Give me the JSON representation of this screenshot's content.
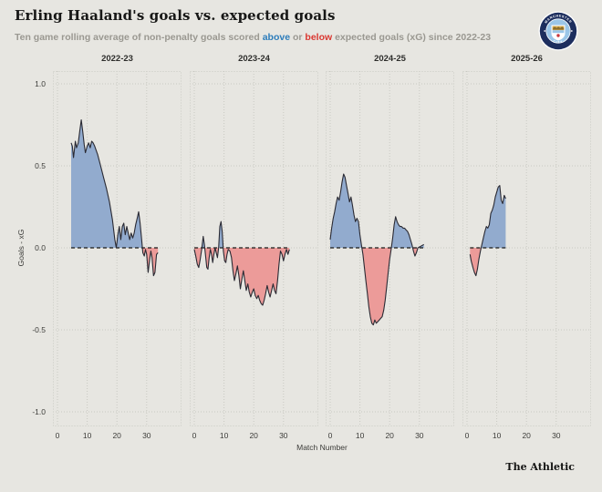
{
  "header": {
    "title": "Erling Haaland's goals vs. expected goals",
    "subtitle_prefix": "Ten game rolling average of non-penalty goals scored ",
    "above_word": "above",
    "or_word": " or ",
    "below_word": "below",
    "subtitle_suffix": " expected goals (xG) since 2022-23",
    "badge_icon": "manchester-city-crest"
  },
  "footer": {
    "brand": "The Athletic"
  },
  "colors": {
    "background": "#e7e6e1",
    "above_fill": "#92abce",
    "below_fill": "#ec9b99",
    "line": "#2a2a33",
    "zero_line": "#1a1a1a",
    "grid": "#c9c9c2",
    "tick_text": "#3c3c39",
    "above_text": "#2d7dbb",
    "below_text": "#da3832",
    "subtitle_text": "#9a9891",
    "crest_navy": "#1d2e5e",
    "crest_sky": "#9bc6e8",
    "crest_gold": "#d4a94a",
    "crest_red": "#c8373e"
  },
  "chart_data": {
    "type": "area",
    "title": "Erling Haaland's goals vs. expected goals",
    "xlabel": "Match Number",
    "ylabel": "Goals - xG",
    "ylim": [
      -1.0,
      1.0
    ],
    "yticks": [
      1.0,
      0.5,
      0.0,
      -0.5,
      -1.0
    ],
    "ytick_labels": [
      "1.0",
      "0.5",
      "0.0",
      "-0.5",
      "-1.0"
    ],
    "xticks": [
      0,
      10,
      20,
      30
    ],
    "xtick_labels": [
      "0",
      "10",
      "20",
      "30"
    ],
    "grid": "dotted",
    "legend": "none",
    "panels": [
      {
        "season": "2022-23",
        "points": [
          [
            4.6,
            0.64
          ],
          [
            5,
            0.62
          ],
          [
            5.4,
            0.55
          ],
          [
            6,
            0.65
          ],
          [
            6.4,
            0.61
          ],
          [
            7,
            0.64
          ],
          [
            7.5,
            0.71
          ],
          [
            8,
            0.78
          ],
          [
            8.5,
            0.71
          ],
          [
            9,
            0.63
          ],
          [
            9.4,
            0.58
          ],
          [
            10,
            0.62
          ],
          [
            10.5,
            0.64
          ],
          [
            11,
            0.61
          ],
          [
            11.5,
            0.65
          ],
          [
            12,
            0.64
          ],
          [
            12.5,
            0.62
          ],
          [
            13.5,
            0.57
          ],
          [
            14.5,
            0.5
          ],
          [
            15.5,
            0.43
          ],
          [
            16.5,
            0.36
          ],
          [
            17.5,
            0.28
          ],
          [
            18.5,
            0.17
          ],
          [
            19.3,
            0.05
          ],
          [
            19.8,
            0.0
          ],
          [
            20.3,
            0.08
          ],
          [
            20.8,
            0.13
          ],
          [
            21.3,
            0.05
          ],
          [
            21.8,
            0.13
          ],
          [
            22.3,
            0.15
          ],
          [
            22.8,
            0.08
          ],
          [
            23.3,
            0.13
          ],
          [
            23.8,
            0.09
          ],
          [
            24.3,
            0.05
          ],
          [
            24.8,
            0.09
          ],
          [
            25.3,
            0.06
          ],
          [
            25.8,
            0.09
          ],
          [
            26.3,
            0.14
          ],
          [
            26.8,
            0.18
          ],
          [
            27.3,
            0.22
          ],
          [
            27.8,
            0.15
          ],
          [
            28.3,
            0.05
          ],
          [
            28.7,
            -0.03
          ],
          [
            29.2,
            -0.05
          ],
          [
            29.6,
            -0.01
          ],
          [
            30,
            -0.04
          ],
          [
            30.5,
            -0.15
          ],
          [
            31,
            -0.07
          ],
          [
            31.4,
            -0.02
          ],
          [
            31.8,
            -0.06
          ],
          [
            32.3,
            -0.17
          ],
          [
            32.8,
            -0.15
          ],
          [
            33.3,
            -0.04
          ],
          [
            33.8,
            -0.03
          ]
        ]
      },
      {
        "season": "2023-24",
        "points": [
          [
            0,
            -0.01
          ],
          [
            0.5,
            -0.05
          ],
          [
            1,
            -0.1
          ],
          [
            1.5,
            -0.12
          ],
          [
            2,
            -0.07
          ],
          [
            2.5,
            -0.01
          ],
          [
            3,
            0.07
          ],
          [
            3.4,
            0.02
          ],
          [
            3.8,
            -0.05
          ],
          [
            4.2,
            -0.12
          ],
          [
            4.6,
            -0.13
          ],
          [
            5,
            -0.06
          ],
          [
            5.4,
            -0.01
          ],
          [
            5.8,
            -0.04
          ],
          [
            6.2,
            -0.09
          ],
          [
            6.6,
            -0.04
          ],
          [
            7,
            0.0
          ],
          [
            7.4,
            -0.03
          ],
          [
            7.8,
            -0.06
          ],
          [
            8.2,
            0.0
          ],
          [
            8.6,
            0.13
          ],
          [
            9,
            0.16
          ],
          [
            9.4,
            0.1
          ],
          [
            9.8,
            -0.02
          ],
          [
            10.2,
            -0.08
          ],
          [
            10.6,
            -0.09
          ],
          [
            11,
            -0.04
          ],
          [
            11.4,
            -0.01
          ],
          [
            12,
            -0.02
          ],
          [
            12.5,
            -0.06
          ],
          [
            13,
            -0.14
          ],
          [
            13.5,
            -0.2
          ],
          [
            14,
            -0.16
          ],
          [
            14.5,
            -0.11
          ],
          [
            15,
            -0.17
          ],
          [
            15.5,
            -0.25
          ],
          [
            16,
            -0.19
          ],
          [
            16.5,
            -0.14
          ],
          [
            17,
            -0.2
          ],
          [
            17.5,
            -0.26
          ],
          [
            18,
            -0.22
          ],
          [
            18.5,
            -0.27
          ],
          [
            19,
            -0.3
          ],
          [
            19.5,
            -0.27
          ],
          [
            20,
            -0.25
          ],
          [
            20.5,
            -0.29
          ],
          [
            21,
            -0.31
          ],
          [
            21.5,
            -0.29
          ],
          [
            22,
            -0.32
          ],
          [
            22.5,
            -0.34
          ],
          [
            23,
            -0.35
          ],
          [
            23.5,
            -0.32
          ],
          [
            24,
            -0.28
          ],
          [
            24.5,
            -0.23
          ],
          [
            25,
            -0.27
          ],
          [
            25.5,
            -0.3
          ],
          [
            26,
            -0.26
          ],
          [
            26.5,
            -0.22
          ],
          [
            27,
            -0.26
          ],
          [
            27.5,
            -0.28
          ],
          [
            28,
            -0.2
          ],
          [
            28.5,
            -0.1
          ],
          [
            29,
            -0.02
          ],
          [
            29.5,
            -0.04
          ],
          [
            30,
            -0.08
          ],
          [
            30.5,
            -0.04
          ],
          [
            31,
            -0.01
          ],
          [
            31.5,
            -0.04
          ],
          [
            32,
            -0.01
          ]
        ]
      },
      {
        "season": "2024-25",
        "points": [
          [
            0,
            0.05
          ],
          [
            0.5,
            0.12
          ],
          [
            1,
            0.18
          ],
          [
            1.5,
            0.22
          ],
          [
            2,
            0.27
          ],
          [
            2.5,
            0.31
          ],
          [
            3,
            0.29
          ],
          [
            3.5,
            0.34
          ],
          [
            4,
            0.4
          ],
          [
            4.5,
            0.45
          ],
          [
            5,
            0.43
          ],
          [
            5.5,
            0.38
          ],
          [
            6,
            0.33
          ],
          [
            6.5,
            0.28
          ],
          [
            7,
            0.31
          ],
          [
            7.5,
            0.26
          ],
          [
            8,
            0.2
          ],
          [
            8.5,
            0.16
          ],
          [
            9,
            0.18
          ],
          [
            9.5,
            0.16
          ],
          [
            10,
            0.08
          ],
          [
            10.5,
            0.02
          ],
          [
            11,
            -0.04
          ],
          [
            11.5,
            -0.12
          ],
          [
            12,
            -0.2
          ],
          [
            12.5,
            -0.28
          ],
          [
            13,
            -0.36
          ],
          [
            13.5,
            -0.42
          ],
          [
            14,
            -0.46
          ],
          [
            14.5,
            -0.47
          ],
          [
            15,
            -0.44
          ],
          [
            15.5,
            -0.46
          ],
          [
            16,
            -0.45
          ],
          [
            16.5,
            -0.44
          ],
          [
            17,
            -0.43
          ],
          [
            17.5,
            -0.42
          ],
          [
            18,
            -0.38
          ],
          [
            18.5,
            -0.32
          ],
          [
            19,
            -0.24
          ],
          [
            19.5,
            -0.15
          ],
          [
            20,
            -0.07
          ],
          [
            20.5,
            -0.01
          ],
          [
            21,
            0.06
          ],
          [
            21.5,
            0.14
          ],
          [
            22,
            0.19
          ],
          [
            22.5,
            0.16
          ],
          [
            23,
            0.14
          ],
          [
            23.5,
            0.13
          ],
          [
            24,
            0.13
          ],
          [
            24.5,
            0.12
          ],
          [
            25,
            0.12
          ],
          [
            25.5,
            0.11
          ],
          [
            26,
            0.1
          ],
          [
            26.5,
            0.08
          ],
          [
            27,
            0.05
          ],
          [
            27.5,
            0.02
          ],
          [
            28,
            -0.02
          ],
          [
            28.5,
            -0.05
          ],
          [
            29,
            -0.03
          ],
          [
            29.5,
            0.0
          ],
          [
            30.5,
            0.01
          ],
          [
            31.5,
            0.02
          ]
        ]
      },
      {
        "season": "2025-26",
        "points": [
          [
            1,
            -0.04
          ],
          [
            1.4,
            -0.08
          ],
          [
            2,
            -0.12
          ],
          [
            2.5,
            -0.15
          ],
          [
            3,
            -0.17
          ],
          [
            3.5,
            -0.13
          ],
          [
            4,
            -0.07
          ],
          [
            4.5,
            -0.02
          ],
          [
            5,
            0.02
          ],
          [
            5.5,
            0.06
          ],
          [
            6,
            0.1
          ],
          [
            6.5,
            0.13
          ],
          [
            7,
            0.12
          ],
          [
            7.5,
            0.14
          ],
          [
            8,
            0.21
          ],
          [
            8.5,
            0.23
          ],
          [
            9,
            0.26
          ],
          [
            9.5,
            0.31
          ],
          [
            10,
            0.34
          ],
          [
            10.5,
            0.37
          ],
          [
            11,
            0.38
          ],
          [
            11.5,
            0.29
          ],
          [
            12,
            0.27
          ],
          [
            12.5,
            0.32
          ],
          [
            13,
            0.3
          ]
        ]
      }
    ]
  },
  "layout": {
    "panel_lefts": [
      58,
      208,
      357,
      507
    ],
    "ytick_y": [
      92,
      182,
      272,
      362,
      452
    ]
  }
}
